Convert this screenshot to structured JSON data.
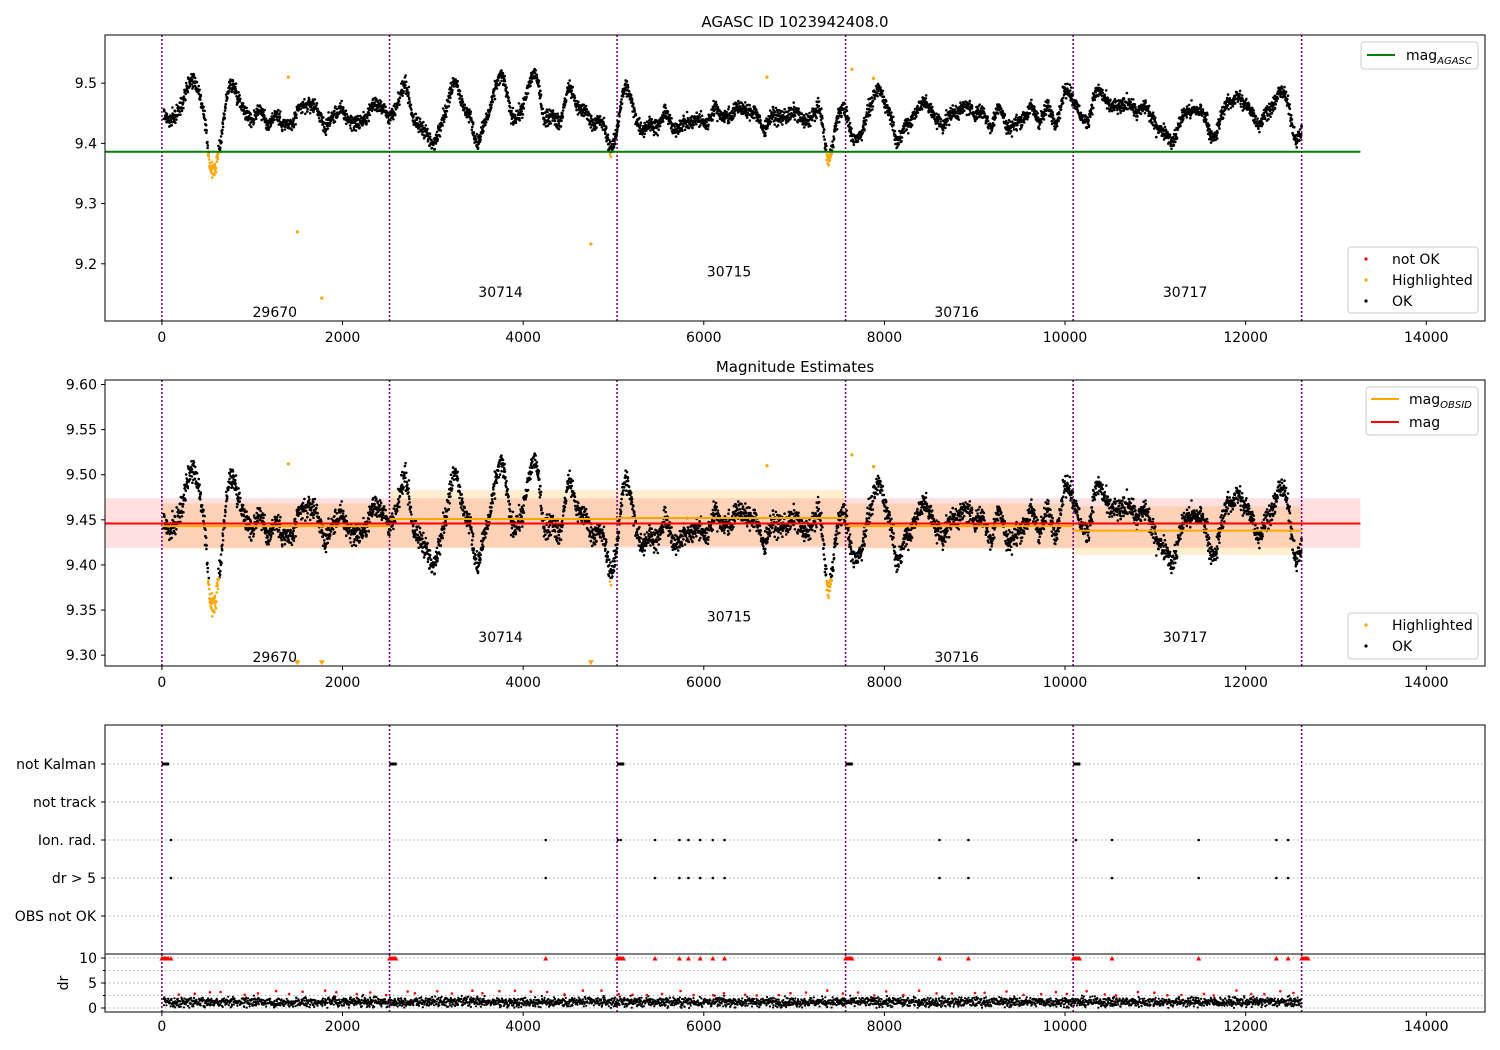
{
  "chart_data": [
    {
      "type": "scatter",
      "title": "AGASC ID 1023942408.0",
      "xlabel": "",
      "ylabel": "",
      "xlim": [
        -630,
        14650
      ],
      "ylim": [
        9.105,
        9.58
      ],
      "xticks": [
        0,
        2000,
        4000,
        6000,
        8000,
        10000,
        12000,
        14000
      ],
      "yticks": [
        9.2,
        9.3,
        9.4,
        9.5
      ],
      "obs_boundaries": [
        0,
        2520,
        5040,
        7570,
        10090,
        12620
      ],
      "obsids": [
        {
          "label": "29670",
          "x": 1250,
          "y": 9.12
        },
        {
          "label": "30714",
          "x": 3750,
          "y": 9.153
        },
        {
          "label": "30715",
          "x": 6280,
          "y": 9.187
        },
        {
          "label": "30716",
          "x": 8800,
          "y": 9.12
        },
        {
          "label": "30717",
          "x": 11330,
          "y": 9.153
        }
      ],
      "hlines": [
        {
          "name": "mag_AGASC",
          "y": 9.386,
          "x0": -630,
          "x1": 13270,
          "color": "#008000"
        }
      ],
      "series": [
        {
          "name": "not OK",
          "color": "#ff0000",
          "values": []
        },
        {
          "name": "Highlighted",
          "color": "#ffa500",
          "values": [
            [
              1400,
              9.51
            ],
            [
              1500,
              9.253
            ],
            [
              1770,
              9.143
            ],
            [
              4750,
              9.233
            ],
            [
              6700,
              9.51
            ],
            [
              7640,
              9.523
            ],
            [
              7880,
              9.508
            ]
          ]
        },
        {
          "name": "OK",
          "color": "#000000",
          "values": []
        }
      ],
      "legend_lines": [
        "mag_AGASC"
      ],
      "legend_points": [
        "not OK",
        "Highlighted",
        "OK"
      ]
    },
    {
      "type": "scatter",
      "title": "Magnitude Estimates",
      "xlabel": "",
      "ylabel": "",
      "xlim": [
        -630,
        14650
      ],
      "ylim": [
        9.288,
        9.605
      ],
      "xticks": [
        0,
        2000,
        4000,
        6000,
        8000,
        10000,
        12000,
        14000
      ],
      "yticks": [
        9.3,
        9.35,
        9.4,
        9.45,
        9.5,
        9.55,
        9.6
      ],
      "obs_boundaries": [
        0,
        2520,
        5040,
        7570,
        10090,
        12620
      ],
      "obsids": [
        {
          "label": "29670",
          "x": 1250,
          "y": 9.298
        },
        {
          "label": "30714",
          "x": 3750,
          "y": 9.32
        },
        {
          "label": "30715",
          "x": 6280,
          "y": 9.343
        },
        {
          "label": "30716",
          "x": 8800,
          "y": 9.298
        },
        {
          "label": "30717",
          "x": 11330,
          "y": 9.32
        }
      ],
      "mag": 9.446,
      "mag_band": [
        9.419,
        9.474
      ],
      "mag_obsid": [
        {
          "x0": 0,
          "x1": 2520,
          "y": 9.443,
          "band": [
            9.418,
            9.468
          ]
        },
        {
          "x0": 2520,
          "x1": 5040,
          "y": 9.451,
          "band": [
            9.419,
            9.483
          ]
        },
        {
          "x0": 5040,
          "x1": 7570,
          "y": 9.452,
          "band": [
            9.421,
            9.483
          ]
        },
        {
          "x0": 7570,
          "x1": 10090,
          "y": 9.443,
          "band": [
            9.418,
            9.468
          ]
        },
        {
          "x0": 10090,
          "x1": 12620,
          "y": 9.438,
          "band": [
            9.411,
            9.465
          ]
        }
      ],
      "hlines": [
        {
          "name": "mag",
          "y": 9.446,
          "x0": -630,
          "x1": 13270,
          "color": "#ff0000"
        }
      ],
      "series": [
        {
          "name": "Highlighted",
          "color": "#ffa500",
          "values": [
            [
              1400,
              9.512
            ],
            [
              6700,
              9.51
            ],
            [
              7640,
              9.522
            ],
            [
              7880,
              9.509
            ]
          ]
        },
        {
          "name": "Highlighted (clipped)",
          "color": "#ffa500",
          "values": [
            [
              1500,
              9.291
            ],
            [
              1770,
              9.291
            ],
            [
              4750,
              9.291
            ]
          ]
        },
        {
          "name": "OK",
          "color": "#000000",
          "values": []
        }
      ],
      "legend_lines": [
        "mag_OBSID",
        "mag"
      ],
      "legend_points": [
        "Highlighted",
        "OK"
      ]
    },
    {
      "type": "scatter",
      "title": "",
      "xlabel": "",
      "ylabel": "",
      "xlim": [
        -630,
        14650
      ],
      "categories": [
        "not Kalman",
        "not track",
        "Ion. rad.",
        "dr > 5",
        "OBS not OK"
      ],
      "flags": {
        "not Kalman": [
          [
            0,
            80
          ],
          [
            2520,
            2600
          ],
          [
            5040,
            5120
          ],
          [
            7570,
            7650
          ],
          [
            10090,
            10170
          ]
        ],
        "not track": [],
        "Ion. rad.": [
          100,
          4250,
          5050,
          5080,
          5460,
          5730,
          5830,
          5960,
          6100,
          6230,
          8610,
          8930,
          10120,
          10520,
          11480,
          12340,
          12470
        ],
        "dr > 5": [
          100,
          4250,
          5460,
          5730,
          5830,
          5960,
          6100,
          6230,
          8610,
          8930,
          10520,
          11480,
          12340,
          12470
        ],
        "OBS not OK": []
      }
    },
    {
      "type": "scatter",
      "title": "",
      "xlabel": "",
      "ylabel": "dr",
      "xlim": [
        -630,
        14650
      ],
      "ylim": [
        -0.8,
        10.8
      ],
      "yticks": [
        0,
        5,
        10
      ],
      "yminor": [
        2.5,
        7.5
      ],
      "series": [
        {
          "name": "dr > 5 (clipped)",
          "color": "#ff0000",
          "values": [
            [
              100,
              10
            ],
            [
              4250,
              10
            ],
            [
              5460,
              10
            ],
            [
              5730,
              10
            ],
            [
              5830,
              10
            ],
            [
              5960,
              10
            ],
            [
              6100,
              10
            ],
            [
              6230,
              10
            ],
            [
              8610,
              10
            ],
            [
              8930,
              10
            ],
            [
              10520,
              10
            ],
            [
              11480,
              10
            ],
            [
              12340,
              10
            ],
            [
              12470,
              10
            ]
          ]
        }
      ]
    }
  ],
  "legends": {
    "top_lines": {
      "mag_agasc_base": "mag",
      "mag_agasc_sub": "AGASC"
    },
    "top_points": {
      "not_ok": "not OK",
      "highlighted": "Highlighted",
      "ok": "OK"
    },
    "mid_lines": {
      "mag_obsid_base": "mag",
      "mag_obsid_sub": "OBSID",
      "mag": "mag"
    },
    "mid_points": {
      "highlighted": "Highlighted",
      "ok": "OK"
    }
  },
  "colors": {
    "agasc": "#008000",
    "mag": "#ff0000",
    "obsid_mag": "#ffa500",
    "boundary": "#800080",
    "ok": "#000000",
    "highlighted": "#ffa500",
    "not_ok": "#ff0000"
  }
}
